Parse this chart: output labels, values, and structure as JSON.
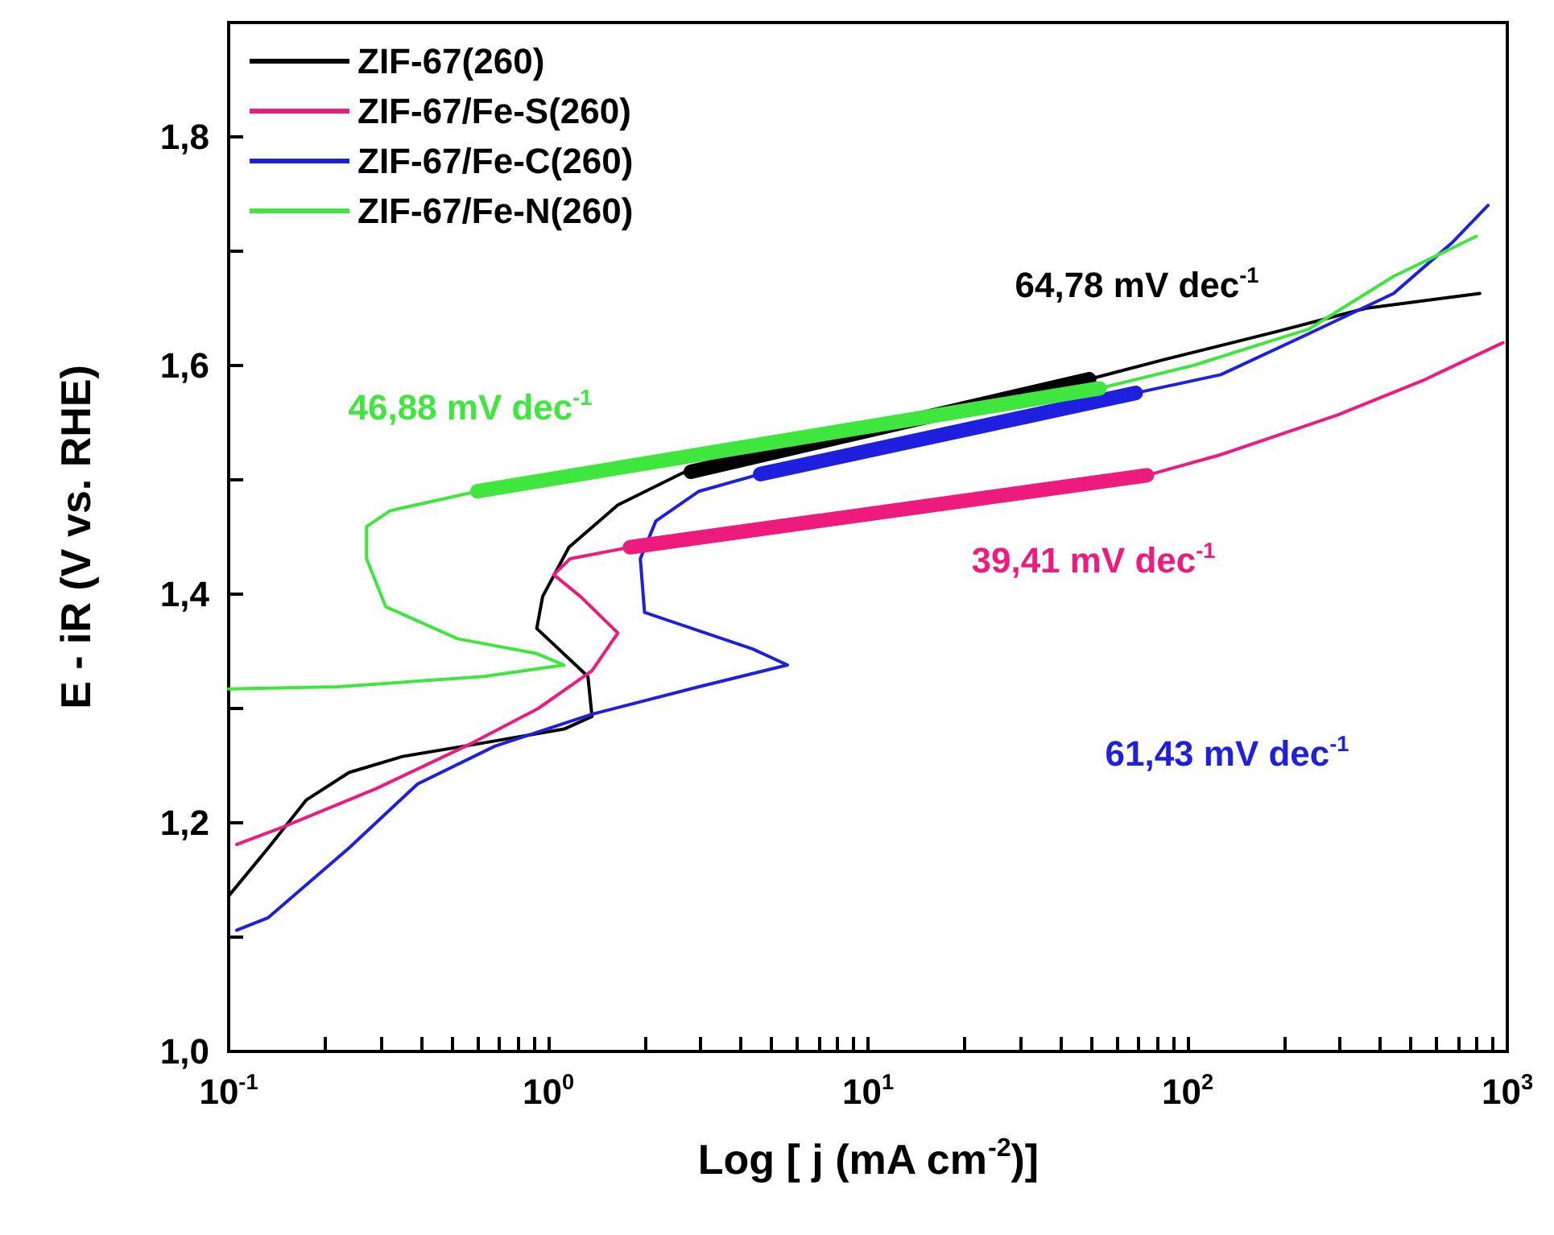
{
  "chart_data": {
    "type": "line",
    "xlabel": "Log [ j (mA cm$^{-2}$)]",
    "ylabel": "E - iR (V vs. RHE)",
    "log": "x",
    "grid": false,
    "legend": "top left",
    "marker": "none",
    "line_style": "solid",
    "xlim": [
      0.1,
      1000
    ],
    "ylim": [
      1.0,
      1.9
    ],
    "xticks": [
      {
        "value": 0.1,
        "label": "10$^{-1}$"
      },
      {
        "value": 0.2,
        "label": null
      },
      {
        "value": 0.3,
        "label": null
      },
      {
        "value": 0.4,
        "label": null
      },
      {
        "value": 0.5,
        "label": null
      },
      {
        "value": 0.6,
        "label": null
      },
      {
        "value": 0.7,
        "label": null
      },
      {
        "value": 0.8,
        "label": null
      },
      {
        "value": 0.9,
        "label": null
      },
      {
        "value": 1,
        "label": "10$^{0}$"
      },
      {
        "value": 2,
        "label": null
      },
      {
        "value": 3,
        "label": null
      },
      {
        "value": 4,
        "label": null
      },
      {
        "value": 5,
        "label": null
      },
      {
        "value": 6,
        "label": null
      },
      {
        "value": 7,
        "label": null
      },
      {
        "value": 8,
        "label": null
      },
      {
        "value": 9,
        "label": null
      },
      {
        "value": 10,
        "label": "10$^{1}$"
      },
      {
        "value": 20,
        "label": null
      },
      {
        "value": 30,
        "label": null
      },
      {
        "value": 40,
        "label": null
      },
      {
        "value": 50,
        "label": null
      },
      {
        "value": 60,
        "label": null
      },
      {
        "value": 70,
        "label": null
      },
      {
        "value": 80,
        "label": null
      },
      {
        "value": 90,
        "label": null
      },
      {
        "value": 100,
        "label": "10$^{2}$"
      },
      {
        "value": 200,
        "label": null
      },
      {
        "value": 300,
        "label": null
      },
      {
        "value": 400,
        "label": null
      },
      {
        "value": 500,
        "label": null
      },
      {
        "value": 600,
        "label": null
      },
      {
        "value": 700,
        "label": null
      },
      {
        "value": 800,
        "label": null
      },
      {
        "value": 900,
        "label": null
      },
      {
        "value": 1000,
        "label": "10$^{3}$"
      }
    ],
    "yticks": [
      {
        "value": 1.0,
        "label": "1,0"
      },
      {
        "value": 1.1,
        "label": null
      },
      {
        "value": 1.2,
        "label": "1,2"
      },
      {
        "value": 1.3,
        "label": null
      },
      {
        "value": 1.4,
        "label": "1,4"
      },
      {
        "value": 1.5,
        "label": null
      },
      {
        "value": 1.6,
        "label": "1,6"
      },
      {
        "value": 1.7,
        "label": null
      },
      {
        "value": 1.8,
        "label": "1,8"
      }
    ],
    "series": [
      {
        "name": "ZIF-67(260)",
        "color": "#000000",
        "x": [
          0.1,
          0.133,
          0.175,
          0.238,
          0.35,
          0.63,
          1.12,
          1.37,
          1.33,
          0.92,
          0.96,
          1.16,
          1.65,
          2.63,
          2.79,
          11.5,
          49.2,
          84,
          192,
          360,
          820
        ],
        "values": [
          1.136,
          1.178,
          1.22,
          1.244,
          1.258,
          1.27,
          1.282,
          1.293,
          1.328,
          1.37,
          1.398,
          1.441,
          1.478,
          1.506,
          1.507,
          1.545,
          1.588,
          1.605,
          1.63,
          1.65,
          1.663
        ]
      },
      {
        "name": "ZIF-67/Fe-S(260)",
        "color": "#ee1b7f",
        "x": [
          0.106,
          0.15,
          0.29,
          0.58,
          0.93,
          1.37,
          1.65,
          1.26,
          1.04,
          1.17,
          1.8,
          74.6,
          127,
          296,
          546,
          970
        ],
        "values": [
          1.181,
          1.197,
          1.23,
          1.27,
          1.3,
          1.333,
          1.366,
          1.398,
          1.417,
          1.431,
          1.441,
          1.504,
          1.522,
          1.557,
          1.587,
          1.62
        ]
      },
      {
        "name": "ZIF-67/Fe-C(260)",
        "color": "#1f1fe0",
        "x": [
          0.106,
          0.133,
          0.238,
          0.39,
          0.68,
          1.37,
          2.96,
          5.6,
          4.36,
          2.0,
          1.94,
          2.17,
          2.96,
          4.6,
          68.8,
          127,
          240,
          441,
          675,
          870
        ],
        "values": [
          1.106,
          1.117,
          1.178,
          1.234,
          1.267,
          1.295,
          1.319,
          1.338,
          1.352,
          1.384,
          1.431,
          1.464,
          1.49,
          1.505,
          1.576,
          1.592,
          1.628,
          1.663,
          1.708,
          1.74
        ]
      },
      {
        "name": "ZIF-67/Fe-N(260)",
        "color": "#3ee63e",
        "x": [
          0.1,
          0.22,
          0.63,
          1.12,
          0.92,
          0.52,
          0.31,
          0.27,
          0.27,
          0.32,
          0.6,
          53,
          104,
          240,
          441,
          800
        ],
        "values": [
          1.317,
          1.319,
          1.328,
          1.338,
          1.348,
          1.361,
          1.389,
          1.431,
          1.459,
          1.473,
          1.49,
          1.58,
          1.6,
          1.632,
          1.678,
          1.713
        ]
      },
      {
        "type": "line",
        "color": "#000000",
        "x": [
          2.79,
          49.2
        ],
        "values": [
          1.507,
          1.588
        ]
      },
      {
        "type": "line",
        "color": "#ee1b7f",
        "x": [
          1.8,
          74.6
        ],
        "values": [
          1.441,
          1.504
        ]
      },
      {
        "type": "line",
        "color": "#1f1fe0",
        "x": [
          4.6,
          68.8
        ],
        "values": [
          1.505,
          1.576
        ]
      },
      {
        "type": "line",
        "color": "#3ee63e",
        "x": [
          0.6,
          53
        ],
        "values": [
          1.49,
          1.58
        ]
      }
    ],
    "annotations": [
      "64,78 mV dec$^{-1}$",
      "39,41 mV dec$^{-1}$",
      "61,43 mV dec$^{-1}$",
      "46,88 mV dec$^{-1}$"
    ]
  }
}
